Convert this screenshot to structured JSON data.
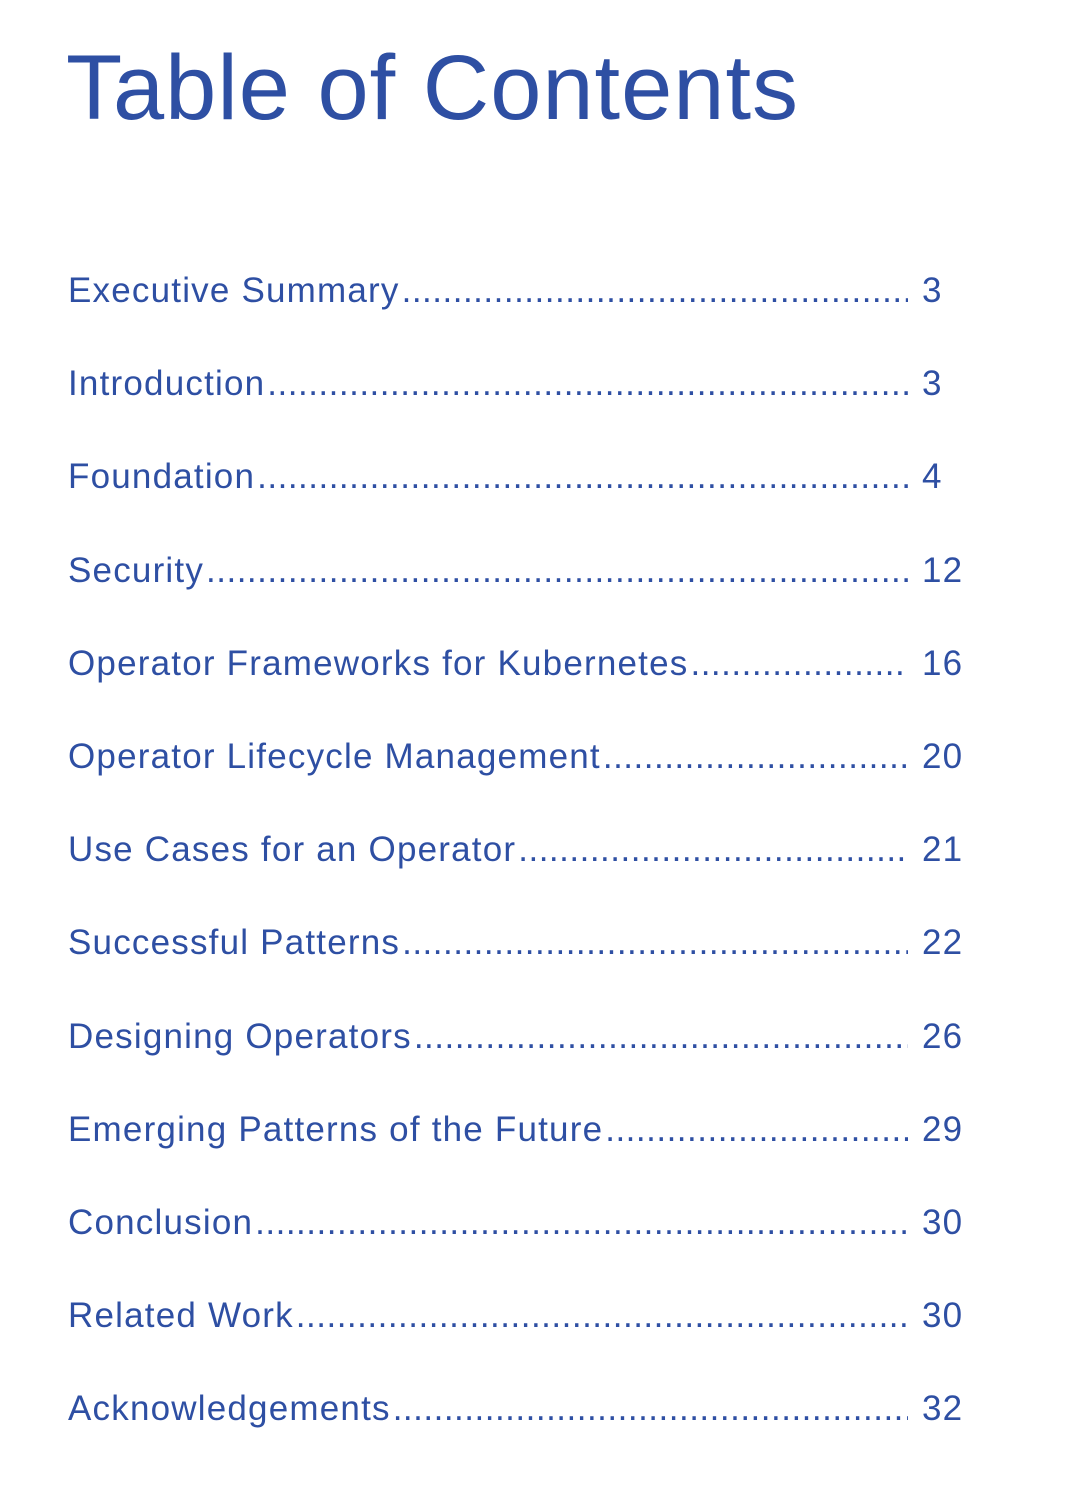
{
  "document": {
    "title": "Table of Contents",
    "colors": {
      "text": "#2E4FA3",
      "background": "#FFFFFF"
    }
  },
  "toc": {
    "entries": [
      {
        "label": "Executive Summary",
        "page": "3"
      },
      {
        "label": "Introduction",
        "page": "3"
      },
      {
        "label": "Foundation",
        "page": "4"
      },
      {
        "label": "Security",
        "page": "12"
      },
      {
        "label": "Operator Frameworks for Kubernetes",
        "page": "16"
      },
      {
        "label": "Operator Lifecycle Management",
        "page": "20"
      },
      {
        "label": "Use Cases for an Operator",
        "page": "21"
      },
      {
        "label": "Successful Patterns",
        "page": "22"
      },
      {
        "label": "Designing Operators",
        "page": "26"
      },
      {
        "label": "Emerging Patterns of the Future",
        "page": "29"
      },
      {
        "label": "Conclusion",
        "page": "30"
      },
      {
        "label": "Related Work",
        "page": "30"
      },
      {
        "label": "Acknowledgements",
        "page": "32"
      }
    ]
  }
}
